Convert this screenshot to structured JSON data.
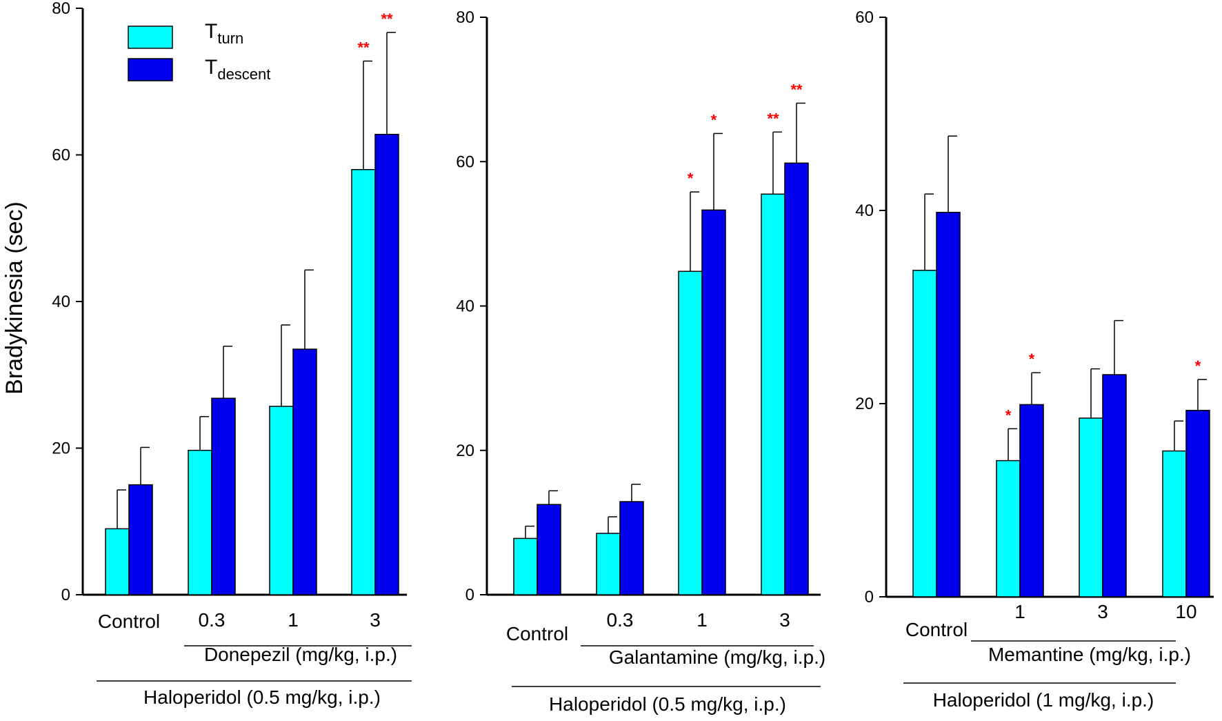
{
  "ylabel": "Bradykinesia (sec)",
  "colors": {
    "turn": "#00ffff",
    "descent": "#0000ee",
    "stars": "#ff0000"
  },
  "legend": {
    "turn_main": "T",
    "turn_sub": "turn",
    "descent_main": "T",
    "descent_sub": "descent"
  },
  "chart_data": [
    {
      "type": "bar",
      "ylim": [
        0,
        80
      ],
      "yticks": [
        0,
        20,
        40,
        60,
        80
      ],
      "categories": [
        "Control",
        "0.3",
        "1",
        "3"
      ],
      "series": [
        {
          "name": "Tturn",
          "values": [
            9,
            19.7,
            25.7,
            58
          ],
          "errors": [
            5.3,
            4.6,
            11.1,
            14.8
          ],
          "stars": [
            "",
            "",
            "",
            "**"
          ]
        },
        {
          "name": "Tdescent",
          "values": [
            15,
            26.8,
            33.5,
            62.8
          ],
          "errors": [
            5.1,
            7.1,
            10.8,
            13.9
          ],
          "stars": [
            "",
            "",
            "",
            "**"
          ]
        }
      ],
      "drug_label": "Donepezil (mg/kg, i.p.)",
      "pretreat_label": "Haloperidol (0.5 mg/kg, i.p.)"
    },
    {
      "type": "bar",
      "ylim": [
        0,
        80
      ],
      "yticks": [
        0,
        20,
        40,
        60,
        80
      ],
      "categories": [
        "Control",
        "0.3",
        "1",
        "3"
      ],
      "series": [
        {
          "name": "Tturn",
          "values": [
            7.8,
            8.5,
            44.8,
            55.5
          ],
          "errors": [
            1.7,
            2.3,
            11,
            8.6
          ],
          "stars": [
            "",
            "",
            "*",
            "**"
          ]
        },
        {
          "name": "Tdescent",
          "values": [
            12.5,
            12.9,
            53.3,
            59.8
          ],
          "errors": [
            1.9,
            2.4,
            10.6,
            8.3
          ],
          "stars": [
            "",
            "",
            "*",
            "**"
          ]
        }
      ],
      "drug_label": "Galantamine  (mg/kg, i.p.)",
      "pretreat_label": "Haloperidol (0.5 mg/kg, i.p.)"
    },
    {
      "type": "bar",
      "ylim": [
        0,
        60
      ],
      "yticks": [
        0,
        20,
        40,
        60
      ],
      "categories": [
        "Control",
        "1",
        "3",
        "10"
      ],
      "series": [
        {
          "name": "Tturn",
          "values": [
            33.8,
            14.1,
            18.5,
            15.1
          ],
          "errors": [
            7.9,
            3.3,
            5.1,
            3.1
          ],
          "stars": [
            "",
            "*",
            "",
            ""
          ]
        },
        {
          "name": "Tdescent",
          "values": [
            39.8,
            19.9,
            23,
            19.3
          ],
          "errors": [
            7.9,
            3.3,
            5.6,
            3.2
          ],
          "stars": [
            "",
            "*",
            "",
            "*"
          ]
        }
      ],
      "drug_label": "Memantine  (mg/kg, i.p.)",
      "pretreat_label": "Haloperidol (1 mg/kg, i.p.)"
    }
  ]
}
